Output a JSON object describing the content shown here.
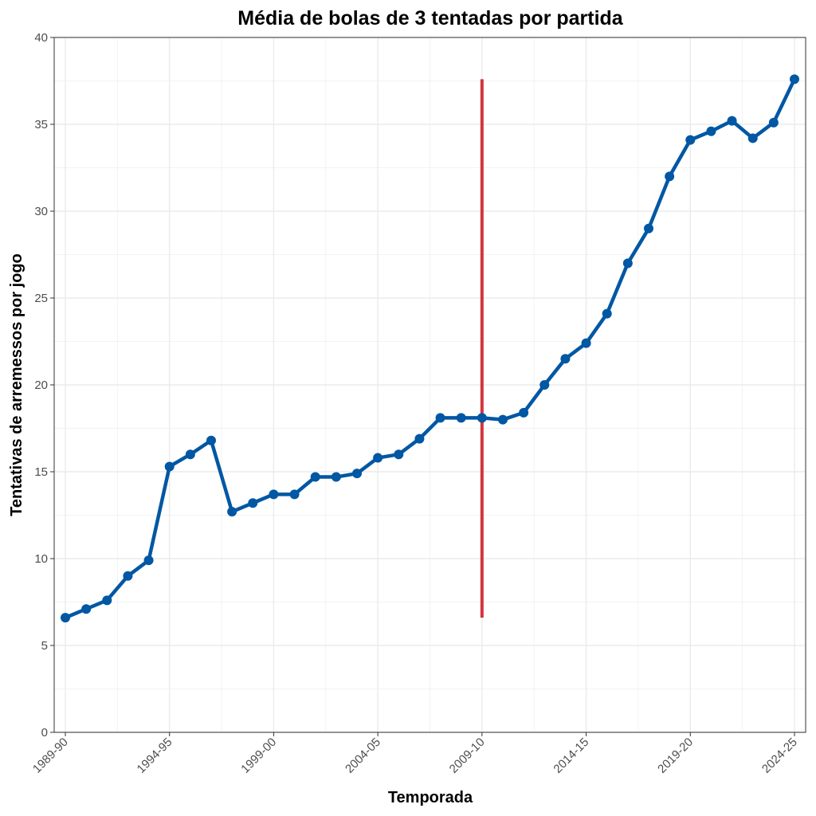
{
  "chart_data": {
    "type": "line",
    "title": "Média de bolas de 3 tentadas por partida",
    "xlabel": "Temporada",
    "ylabel": "Tentativas de arremessos por jogo",
    "ylim": [
      0,
      40
    ],
    "y_ticks": [
      0,
      5,
      10,
      15,
      20,
      25,
      30,
      35,
      40
    ],
    "x_tick_labels": [
      "1989-90",
      "1994-95",
      "1999-00",
      "2004-05",
      "2009-10",
      "2014-15",
      "2019-20",
      "2024-25"
    ],
    "grid": true,
    "categories": [
      "1989-90",
      "1990-91",
      "1991-92",
      "1992-93",
      "1993-94",
      "1994-95",
      "1995-96",
      "1996-97",
      "1997-98",
      "1998-99",
      "1999-00",
      "2000-01",
      "2001-02",
      "2002-03",
      "2003-04",
      "2004-05",
      "2005-06",
      "2006-07",
      "2007-08",
      "2008-09",
      "2009-10",
      "2010-11",
      "2011-12",
      "2012-13",
      "2013-14",
      "2014-15",
      "2015-16",
      "2016-17",
      "2017-18",
      "2018-19",
      "2019-20",
      "2020-21",
      "2021-22",
      "2022-23",
      "2023-24",
      "2024-25"
    ],
    "series": [
      {
        "color": "#0057a3",
        "values": [
          6.6,
          7.1,
          7.6,
          9.0,
          9.9,
          15.3,
          16.0,
          16.8,
          12.7,
          13.2,
          13.7,
          13.7,
          14.7,
          14.7,
          14.9,
          15.8,
          16.0,
          16.9,
          18.1,
          18.1,
          18.1,
          18.0,
          18.4,
          20.0,
          21.5,
          22.4,
          24.1,
          27.0,
          29.0,
          32.0,
          34.1,
          34.6,
          35.2,
          34.2,
          35.1,
          37.6
        ]
      }
    ],
    "annotations": [
      {
        "type": "vertical-segment",
        "x": "2009-10",
        "y_from": 6.6,
        "y_to": 37.6,
        "color": "#d3343f"
      }
    ]
  }
}
